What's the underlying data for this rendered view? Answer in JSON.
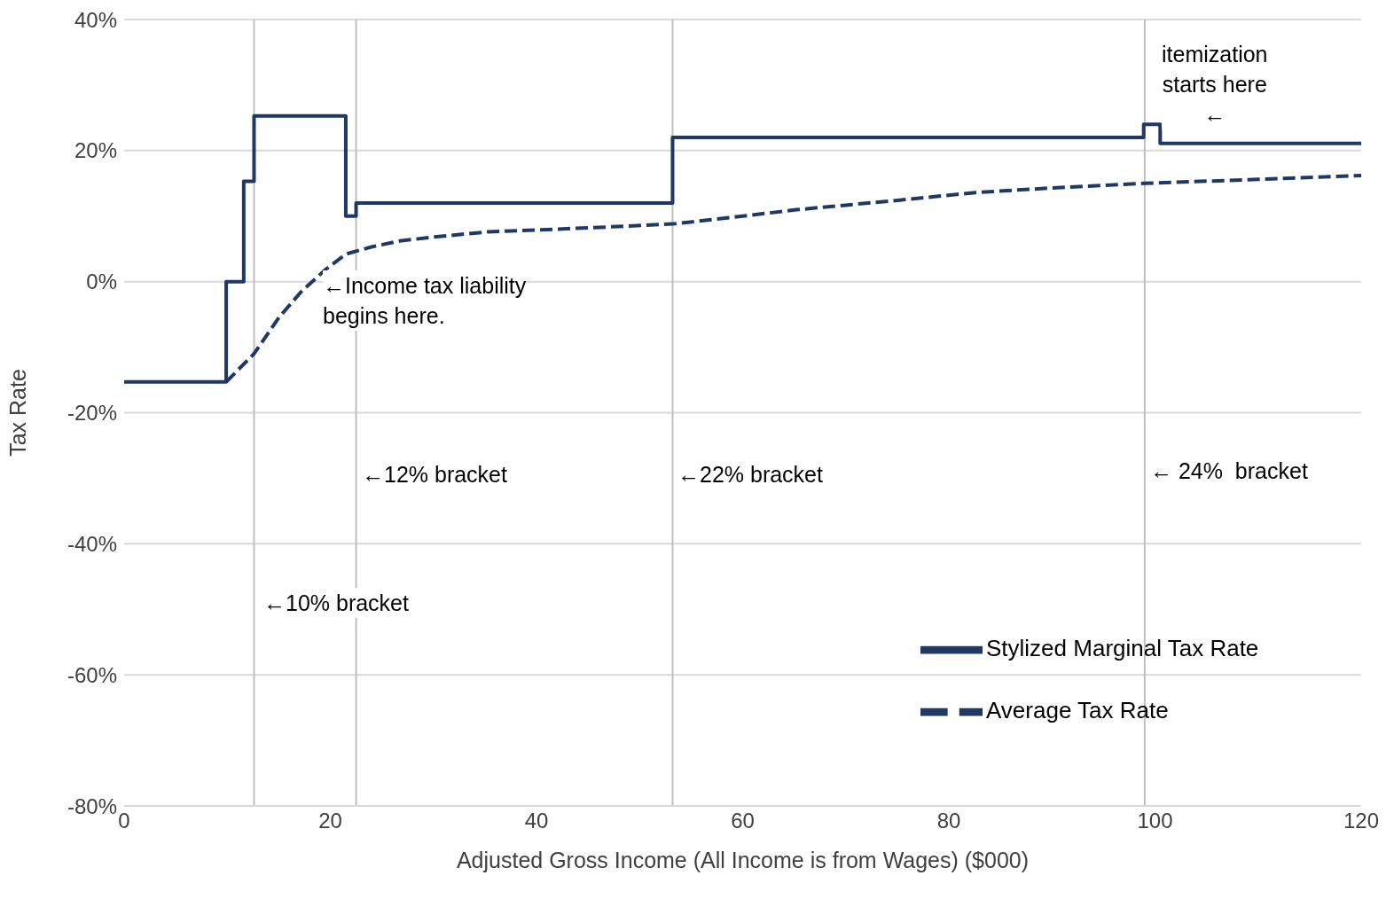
{
  "chart_data": {
    "type": "line",
    "xlabel": "Adjusted Gross Income (All Income is from Wages) ($000)",
    "ylabel": "Tax Rate",
    "xlim": [
      0,
      120
    ],
    "xticks": [
      0,
      20,
      40,
      60,
      80,
      100,
      120
    ],
    "ylim": [
      -80,
      40
    ],
    "yticks": [
      {
        "value": -80,
        "label": "-80%"
      },
      {
        "value": -60,
        "label": "-60%"
      },
      {
        "value": -40,
        "label": "-40%"
      },
      {
        "value": -20,
        "label": "-20%"
      },
      {
        "value": 0,
        "label": "0%"
      },
      {
        "value": 20,
        "label": "20%"
      },
      {
        "value": 40,
        "label": "40%"
      }
    ],
    "grid": "y",
    "legend": "bottom right",
    "marker": "none",
    "series": [
      {
        "name": "Stylized Marginal Tax Rate",
        "color": "#1f3864",
        "line_style": "solid",
        "x": [
          0,
          9.9,
          9.9,
          11.6,
          11.6,
          12.6,
          12.6,
          21.5,
          21.5,
          22.5,
          22.5,
          53.2,
          53.2,
          98.9,
          98.9,
          100.5,
          100.5,
          120
        ],
        "values": [
          -15.3,
          -15.3,
          0,
          0,
          15.3,
          15.3,
          25.3,
          25.3,
          10,
          10,
          12,
          12,
          22,
          22,
          24,
          24,
          21.1,
          21.1
        ]
      },
      {
        "name": "Average Tax Rate",
        "color": "#1f3864",
        "line_style": "dashed",
        "x": [
          9.9,
          12.6,
          15,
          17.2,
          19.5,
          21.5,
          24,
          26.7,
          30,
          35.3,
          45,
          53.2,
          60,
          65.4,
          75,
          82.6,
          90,
          99,
          110,
          120
        ],
        "values": [
          -15.3,
          -11,
          -5.5,
          -1.5,
          1.8,
          4.2,
          5.3,
          6.2,
          6.8,
          7.6,
          8.2,
          8.8,
          10,
          11,
          12.4,
          13.6,
          14.3,
          15,
          15.6,
          16.2
        ]
      }
    ],
    "ref_lines": [
      {
        "axis": "x",
        "value": 12.6,
        "color": "#bfbfbf"
      },
      {
        "axis": "x",
        "value": 22.5,
        "color": "#bfbfbf"
      },
      {
        "axis": "x",
        "value": 53.2,
        "color": "#bfbfbf"
      },
      {
        "axis": "x",
        "value": 99,
        "color": "#bfbfbf"
      }
    ],
    "annotations": [
      "←Income tax liability\nbegins here.",
      "←12% bracket",
      "←22% bracket",
      "← 24%  bracket",
      "←10% bracket",
      "itemization\nstarts here\n←"
    ]
  }
}
